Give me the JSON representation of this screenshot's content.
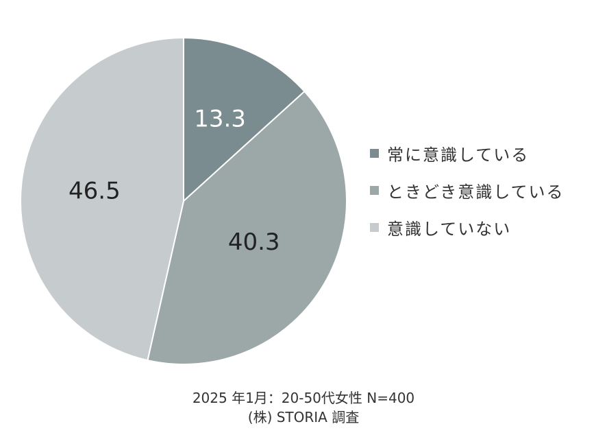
{
  "chart_data": {
    "type": "pie",
    "title": "",
    "slices": [
      {
        "label": "常に意識している",
        "value": 13.3,
        "value_label": "13.3",
        "color": "#7a8c8f"
      },
      {
        "label": "ときどき意識している",
        "value": 40.3,
        "value_label": "40.3",
        "color": "#9ca7a8"
      },
      {
        "label": "意識していない",
        "value": 46.5,
        "value_label": "46.5",
        "color": "#c6cccd"
      }
    ],
    "start_angle": "12 o'clock",
    "direction": "clockwise",
    "legend_position": "right",
    "value_label_colors": [
      "#ffffff",
      "#222222",
      "#222222"
    ]
  },
  "footer": {
    "line1": "2025 年1月：20-50代女性 N=400",
    "line2": "(株) STORIA 調査"
  }
}
